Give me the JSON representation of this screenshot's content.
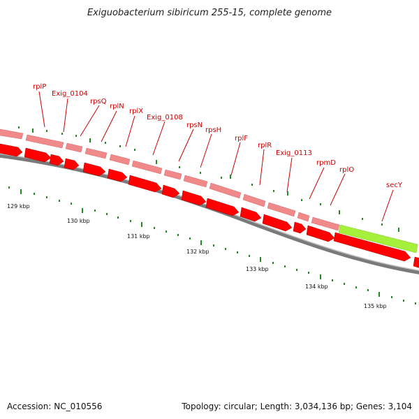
{
  "title": "Exiguobacterium sibiricum 255-15, complete genome",
  "footer": {
    "accession": "Accession: NC_010556",
    "topology": "Topology: circular; Length: 3,034,136 bp; Genes: 3,104"
  },
  "colors": {
    "gene_label": "#cc0000",
    "cds_forward": "#ff0000",
    "rrna_track": "#f08a8a",
    "highlight_gene": "#a6f03c",
    "backbone": "#777777",
    "tick": "#228b22"
  },
  "genes": [
    "rplP",
    "Exig_0104",
    "rpsQ",
    "rplN",
    "rplX",
    "Exig_0108",
    "rpsN",
    "rpsH",
    "rplF",
    "rplR",
    "Exig_0113",
    "rpmD",
    "rplO",
    "secY"
  ],
  "kbp_labels": [
    "129 kbp",
    "130 kbp",
    "131 kbp",
    "132 kbp",
    "133 kbp",
    "134 kbp",
    "135 kbp"
  ]
}
